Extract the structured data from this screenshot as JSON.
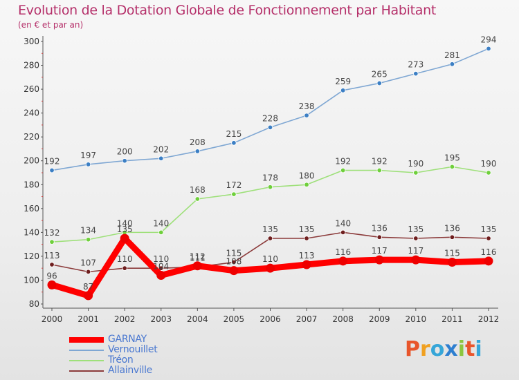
{
  "header": {
    "title": "Evolution de la Dotation Globale de Fonctionnement par Habitant",
    "subtitle": "(en € et par an)"
  },
  "logo": {
    "text": "Proxiti",
    "colors": [
      "#e8552b",
      "#f0a020",
      "#36a6d8",
      "#2e7fd0",
      "#8cc63f",
      "#e8552b",
      "#36a6d8"
    ]
  },
  "chart_data": {
    "type": "line",
    "title": "Evolution de la Dotation Globale de Fonctionnement par Habitant",
    "subtitle": "(en € et par an)",
    "xlabel": "",
    "ylabel": "",
    "x": [
      "2000",
      "2001",
      "2002",
      "2003",
      "2004",
      "2005",
      "2006",
      "2007",
      "2008",
      "2009",
      "2010",
      "2011",
      "2012"
    ],
    "ylim": [
      80,
      300
    ],
    "yticks": [
      80,
      100,
      120,
      140,
      160,
      180,
      200,
      220,
      240,
      260,
      280,
      300
    ],
    "grid": false,
    "legend_position": "bottom-left",
    "series": [
      {
        "name": "GARNAY",
        "color": "#ff0000",
        "marker_color": "#ee0000",
        "emphasis": true,
        "values": [
          96,
          87,
          135,
          104,
          112,
          108,
          110,
          113,
          116,
          117,
          117,
          115,
          116
        ],
        "labels": [
          "96",
          "87",
          "135",
          "104",
          "112",
          "108",
          "110",
          "113",
          "116",
          "117",
          "117",
          "115",
          "116"
        ]
      },
      {
        "name": "Vernouillet",
        "color": "#7fa7d3",
        "marker_color": "#3c7fc4",
        "emphasis": false,
        "values": [
          192,
          197,
          200,
          202,
          208,
          215,
          228,
          238,
          259,
          265,
          273,
          281,
          294
        ],
        "labels": [
          "192",
          "197",
          "200",
          "202",
          "208",
          "215",
          "228",
          "238",
          "259",
          "265",
          "273",
          "281",
          "294"
        ]
      },
      {
        "name": "Tréon",
        "color": "#9ee07a",
        "marker_color": "#6fcf3c",
        "emphasis": false,
        "values": [
          132,
          134,
          140,
          140,
          168,
          172,
          178,
          180,
          192,
          192,
          190,
          195,
          190
        ],
        "labels": [
          "132",
          "134",
          "140",
          "140",
          "168",
          "172",
          "178",
          "180",
          "192",
          "192",
          "190",
          "195",
          "190"
        ]
      },
      {
        "name": "Allainville",
        "color": "#8b3a3a",
        "marker_color": "#6e1e1e",
        "emphasis": false,
        "values": [
          113,
          107,
          110,
          110,
          111,
          115,
          135,
          135,
          140,
          136,
          135,
          136,
          135
        ],
        "labels": [
          "113",
          "107",
          "110",
          "110",
          "111",
          "115",
          "135",
          "135",
          "140",
          "136",
          "135",
          "136",
          "135"
        ]
      }
    ]
  }
}
